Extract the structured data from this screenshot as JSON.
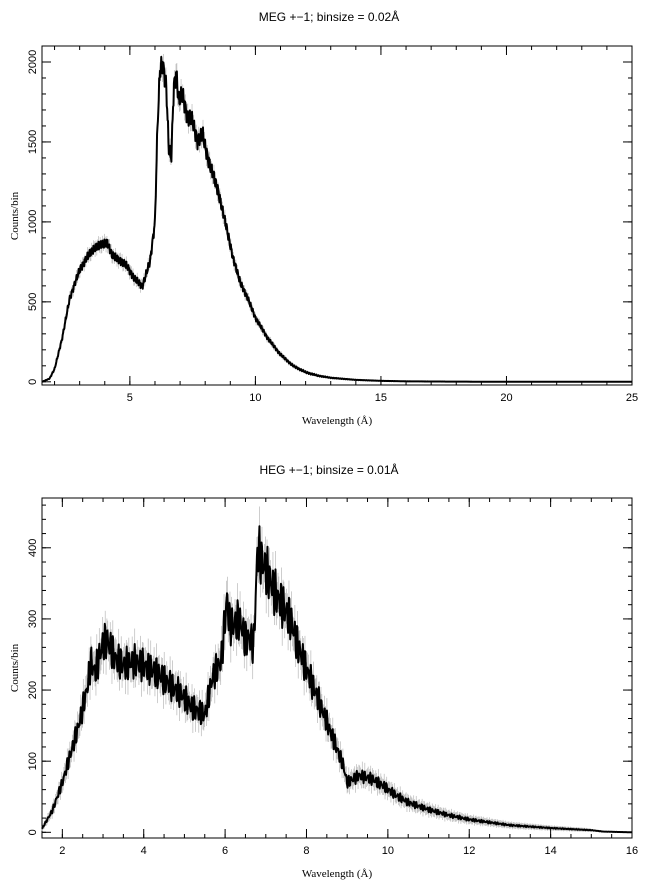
{
  "chart_data": [
    {
      "type": "line",
      "title": "MEG +−1; binsize = 0.02Å",
      "xlabel": "Wavelength (Å)",
      "ylabel": "Counts/bin",
      "xlim": [
        1.5,
        25
      ],
      "ylim": [
        -20,
        2100
      ],
      "xticks": [
        5,
        10,
        15,
        20,
        25
      ],
      "yticks": [
        0,
        500,
        1000,
        1500,
        2000
      ],
      "grid": false,
      "series": [
        {
          "x": [
            1.5,
            1.8,
            2.0,
            2.3,
            2.6,
            3.0,
            3.3,
            3.6,
            3.9,
            4.1,
            4.3,
            4.6,
            4.9,
            5.2,
            5.5,
            5.8,
            6.0,
            6.1,
            6.2,
            6.3,
            6.45,
            6.55,
            6.65,
            6.75,
            6.85,
            6.95,
            7.1,
            7.3,
            7.5,
            7.7,
            7.9,
            8.1,
            8.3,
            8.5,
            8.8,
            9.1,
            9.4,
            9.7,
            10.0,
            10.5,
            11.0,
            11.5,
            12.0,
            12.5,
            13.0,
            14.0,
            15.0,
            16.0,
            17.0,
            18.0,
            20.0,
            22.0,
            25.0
          ],
          "y": [
            0,
            20,
            80,
            270,
            520,
            700,
            780,
            840,
            860,
            870,
            790,
            760,
            720,
            640,
            600,
            750,
            1000,
            1600,
            1950,
            2000,
            1850,
            1450,
            1400,
            1850,
            1930,
            1750,
            1800,
            1650,
            1630,
            1500,
            1550,
            1400,
            1300,
            1200,
            1000,
            780,
            620,
            520,
            400,
            270,
            170,
            100,
            60,
            38,
            25,
            12,
            6,
            3,
            2,
            1,
            0,
            0,
            0
          ]
        }
      ]
    },
    {
      "type": "line",
      "title": "HEG +−1; binsize = 0.01Å",
      "xlabel": "Wavelength (Å)",
      "ylabel": "Counts/bin",
      "xlim": [
        1.5,
        16
      ],
      "ylim": [
        -8,
        470
      ],
      "xticks": [
        2,
        4,
        6,
        8,
        10,
        12,
        14,
        16
      ],
      "yticks": [
        0,
        100,
        200,
        300,
        400
      ],
      "grid": false,
      "series": [
        {
          "x": [
            1.5,
            1.75,
            2.0,
            2.2,
            2.4,
            2.6,
            2.7,
            2.8,
            3.0,
            3.1,
            3.3,
            3.5,
            3.8,
            4.0,
            4.3,
            4.6,
            4.9,
            5.2,
            5.5,
            5.7,
            5.9,
            6.0,
            6.05,
            6.1,
            6.2,
            6.35,
            6.5,
            6.6,
            6.7,
            6.75,
            6.8,
            6.9,
            7.0,
            7.2,
            7.4,
            7.6,
            7.8,
            8.0,
            8.3,
            8.6,
            8.9,
            9.0,
            9.3,
            9.6,
            9.9,
            10.2,
            10.5,
            11.0,
            11.5,
            12.0,
            12.5,
            13.0,
            14.0,
            15.0,
            15.3,
            16.0
          ],
          "y": [
            5,
            30,
            70,
            110,
            150,
            200,
            240,
            225,
            265,
            270,
            245,
            235,
            240,
            235,
            225,
            210,
            195,
            175,
            165,
            220,
            240,
            300,
            330,
            295,
            290,
            300,
            270,
            275,
            260,
            330,
            400,
            380,
            370,
            340,
            320,
            300,
            260,
            230,
            185,
            140,
            95,
            70,
            80,
            75,
            65,
            52,
            42,
            32,
            24,
            18,
            14,
            10,
            6,
            3,
            1,
            0
          ]
        }
      ]
    }
  ]
}
